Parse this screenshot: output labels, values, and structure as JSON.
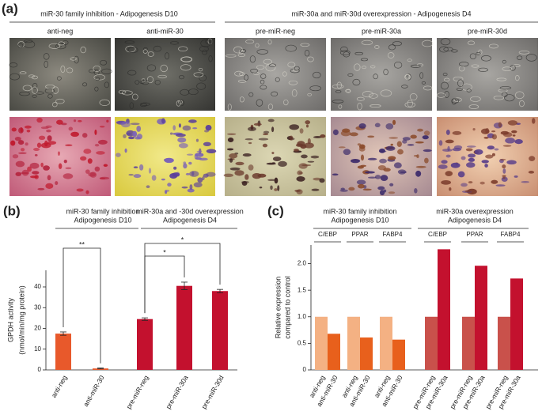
{
  "panel_a": {
    "label": "(a)",
    "headers": [
      "miR-30 family inhibition - Adipogenesis D10",
      "miR-30a and miR-30d overexpression - Adipogenesis D4"
    ],
    "image_labels": [
      "anti-neg",
      "anti-miR-30",
      "pre-miR-neg",
      "pre-miR-30a",
      "pre-miR-30d"
    ]
  },
  "chart_data": [
    {
      "type": "bar",
      "label": "(b)",
      "group_labels": [
        [
          "miR-30 family inhibition",
          "Adipogenesis D10"
        ],
        [
          "miR-30a and -30d overexpression",
          "Adipogenesis D4"
        ]
      ],
      "ylabel": [
        "GPDH activity",
        "(nmol/min/mg protein)"
      ],
      "categories": [
        "anti-neg",
        "anti-miR-30",
        "pre-miR-neg",
        "pre-miR-30a",
        "pre-miR-30d"
      ],
      "values": [
        17.5,
        0.7,
        24.5,
        40.5,
        38
      ],
      "errors": [
        0.8,
        0.2,
        0.6,
        1.8,
        0.8
      ],
      "colors": [
        "#e8592b",
        "#e8592b",
        "#c3112e",
        "#c3112e",
        "#c3112e"
      ],
      "annotations": [
        "**",
        "*",
        "*"
      ],
      "ylim": [
        0,
        48
      ],
      "yticks": [
        0,
        10,
        20,
        30,
        40
      ]
    },
    {
      "type": "bar",
      "label": "(c)",
      "group_labels": [
        [
          "miR-30 family inhibition",
          "Adipogenesis D10"
        ],
        [
          "miR-30a overexpression",
          "Adipogenesis D4"
        ]
      ],
      "genes": [
        "C/EBP",
        "PPAR",
        "FABP4",
        "C/EBP",
        "PPAR",
        "FABP4"
      ],
      "ylabel": [
        "Relative expression",
        "compared to control"
      ],
      "categories": [
        "anti-neg",
        "anti-miR-30",
        "anti-neg",
        "anti-miR-30",
        "anti-neg",
        "anti-miR-30",
        "pre-miR-neg",
        "pre-miR-30a",
        "pre-miR-neg",
        "pre-miR-30a",
        "pre-miR-neg",
        "pre-miR-30a"
      ],
      "values": [
        1,
        0.68,
        1,
        0.61,
        1,
        0.57,
        1,
        2.27,
        1,
        1.96,
        1,
        1.72
      ],
      "colors": [
        "#f4b183",
        "#e8601c",
        "#f4b183",
        "#e8601c",
        "#f4b183",
        "#e8601c",
        "#c9514b",
        "#c3112e",
        "#c9514b",
        "#c3112e",
        "#c9514b",
        "#c3112e"
      ],
      "ylim": [
        0,
        2.35
      ],
      "yticks": [
        0,
        0.5,
        {
          "value": 1,
          "label": "1.0"
        },
        1.5,
        {
          "value": 2,
          "label": "2.0"
        }
      ]
    }
  ]
}
